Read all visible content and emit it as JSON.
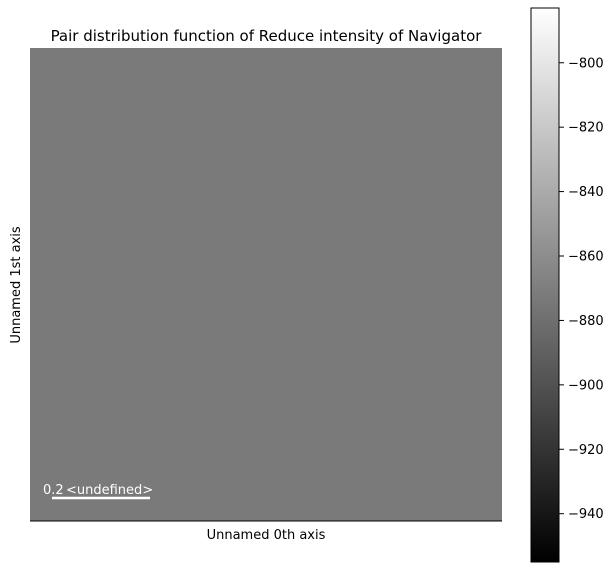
{
  "chart_data": {
    "type": "heatmap",
    "title": "Pair distribution function of Reduce intensity of  Navigator",
    "xlabel": "Unnamed 0th axis",
    "ylabel": "Unnamed 1st axis",
    "colormap": "gray",
    "image_value": -873,
    "colorbar": {
      "range": [
        -955,
        -783
      ],
      "ticks": [
        -800,
        -820,
        -840,
        -860,
        -880,
        -900,
        -920,
        -940
      ],
      "tick_labels": [
        "−800",
        "−820",
        "−840",
        "−860",
        "−880",
        "−900",
        "−920",
        "−940"
      ]
    },
    "scalebar": {
      "value": "0.2",
      "units": "<undefined>",
      "color": "#ffffff"
    }
  }
}
